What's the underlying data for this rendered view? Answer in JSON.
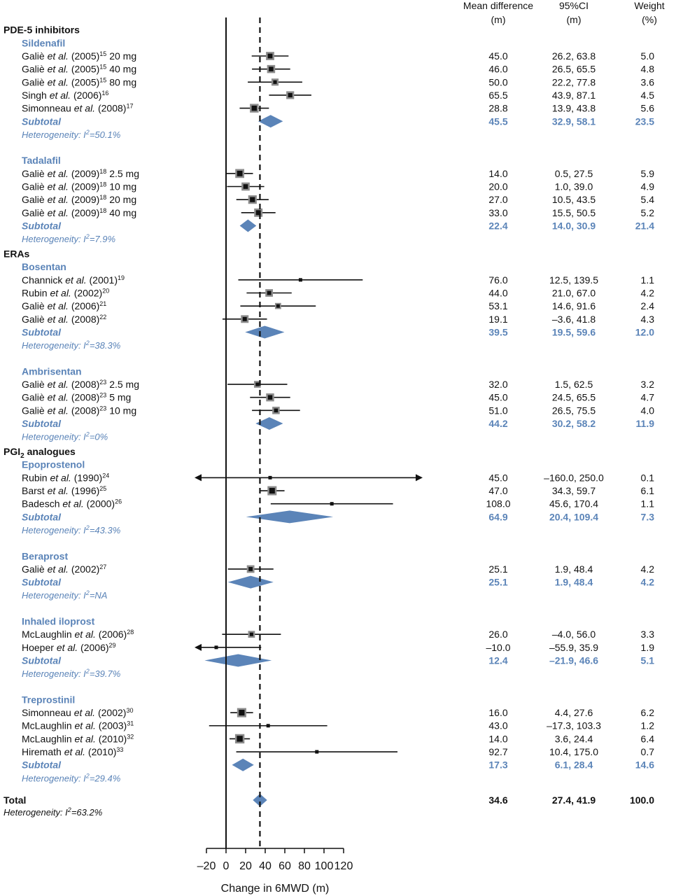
{
  "chart_data": {
    "type": "forest",
    "xlabel": "Change in 6MWD (m)",
    "xlim": [
      -20,
      120
    ],
    "xticks": [
      -20,
      0,
      20,
      40,
      60,
      80,
      100,
      120
    ],
    "reference_line": 34.6,
    "columns": {
      "mean": [
        "Mean difference",
        "(m)"
      ],
      "ci": [
        "95%CI",
        "(m)"
      ],
      "weight": [
        "Weight",
        "(%)"
      ]
    },
    "groups": [
      {
        "name": "PDE-5 inhibitors",
        "name_sub": "",
        "subgroups": [
          {
            "name": "Sildenafil",
            "studies": [
              {
                "pre": "Galiè ",
                "it": "et al.",
                "post": " (2005)",
                "sup": "15",
                "suf": " 20 mg",
                "md": 45.0,
                "lo": 26.2,
                "hi": 63.8,
                "md_t": "45.0",
                "ci_t": "26.2, 63.8",
                "w_t": "5.0",
                "w": 5.0
              },
              {
                "pre": "Galiè ",
                "it": "et al.",
                "post": " (2005)",
                "sup": "15",
                "suf": " 40 mg",
                "md": 46.0,
                "lo": 26.5,
                "hi": 65.5,
                "md_t": "46.0",
                "ci_t": "26.5, 65.5",
                "w_t": "4.8",
                "w": 4.8
              },
              {
                "pre": "Galiè ",
                "it": "et al.",
                "post": " (2005)",
                "sup": "15",
                "suf": " 80 mg",
                "md": 50.0,
                "lo": 22.2,
                "hi": 77.8,
                "md_t": "50.0",
                "ci_t": "22.2, 77.8",
                "w_t": "3.6",
                "w": 3.6
              },
              {
                "pre": "Singh ",
                "it": "et al.",
                "post": " (2006)",
                "sup": "16",
                "suf": "",
                "md": 65.5,
                "lo": 43.9,
                "hi": 87.1,
                "md_t": "65.5",
                "ci_t": "43.9, 87.1",
                "w_t": "4.5",
                "w": 4.5
              },
              {
                "pre": "Simonneau ",
                "it": "et al.",
                "post": " (2008)",
                "sup": "17",
                "suf": "",
                "md": 28.8,
                "lo": 13.9,
                "hi": 43.8,
                "md_t": "28.8",
                "ci_t": "13.9, 43.8",
                "w_t": "5.6",
                "w": 5.6
              }
            ],
            "subtotal": {
              "label": "Subtotal",
              "md": 45.5,
              "lo": 32.9,
              "hi": 58.1,
              "md_t": "45.5",
              "ci_t": "32.9, 58.1",
              "w_t": "23.5"
            },
            "het": {
              "pre": "Heterogeneity: ",
              "i": "I",
              "sup": "2",
              "post": "=50.1%"
            }
          },
          {
            "name": "Tadalafil",
            "studies": [
              {
                "pre": "Galiè ",
                "it": "et al.",
                "post": " (2009)",
                "sup": "18",
                "suf": " 2.5 mg",
                "md": 14.0,
                "lo": 0.5,
                "hi": 27.5,
                "md_t": "14.0",
                "ci_t": "0.5, 27.5",
                "w_t": "5.9",
                "w": 5.9
              },
              {
                "pre": "Galiè ",
                "it": "et al.",
                "post": " (2009)",
                "sup": "18",
                "suf": " 10 mg",
                "md": 20.0,
                "lo": 1.0,
                "hi": 39.0,
                "md_t": "20.0",
                "ci_t": "1.0, 39.0",
                "w_t": "4.9",
                "w": 4.9
              },
              {
                "pre": "Galiè ",
                "it": "et al.",
                "post": " (2009)",
                "sup": "18",
                "suf": " 20 mg",
                "md": 27.0,
                "lo": 10.5,
                "hi": 43.5,
                "md_t": "27.0",
                "ci_t": "10.5, 43.5",
                "w_t": "5.4",
                "w": 5.4
              },
              {
                "pre": "Galiè ",
                "it": "et al.",
                "post": " (2009)",
                "sup": "18",
                "suf": " 40 mg",
                "md": 33.0,
                "lo": 15.5,
                "hi": 50.5,
                "md_t": "33.0",
                "ci_t": "15.5, 50.5",
                "w_t": "5.2",
                "w": 5.2
              }
            ],
            "subtotal": {
              "label": "Subtotal",
              "md": 22.4,
              "lo": 14.0,
              "hi": 30.9,
              "md_t": "22.4",
              "ci_t": "14.0, 30.9",
              "w_t": "21.4"
            },
            "het": {
              "pre": "Heterogeneity: ",
              "i": "I",
              "sup": "2",
              "post": "=7.9%"
            }
          }
        ]
      },
      {
        "name": "ERAs",
        "name_sub": "",
        "subgroups": [
          {
            "name": "Bosentan",
            "studies": [
              {
                "pre": "Channick ",
                "it": "et al.",
                "post": " (2001)",
                "sup": "19",
                "suf": "",
                "md": 76.0,
                "lo": 12.5,
                "hi": 139.5,
                "md_t": "76.0",
                "ci_t": "12.5, 139.5",
                "w_t": "1.1",
                "w": 1.1
              },
              {
                "pre": "Rubin ",
                "it": "et al.",
                "post": " (2002)",
                "sup": "20",
                "suf": "",
                "md": 44.0,
                "lo": 21.0,
                "hi": 67.0,
                "md_t": "44.0",
                "ci_t": "21.0, 67.0",
                "w_t": "4.2",
                "w": 4.2
              },
              {
                "pre": "Galiè ",
                "it": "et al.",
                "post": " (2006)",
                "sup": "21",
                "suf": "",
                "md": 53.1,
                "lo": 14.6,
                "hi": 91.6,
                "md_t": "53.1",
                "ci_t": "14.6, 91.6",
                "w_t": "2.4",
                "w": 2.4
              },
              {
                "pre": "Galiè ",
                "it": "et al.",
                "post": " (2008)",
                "sup": "22",
                "suf": "",
                "md": 19.1,
                "lo": -3.6,
                "hi": 41.8,
                "md_t": "19.1",
                "ci_t": "–3.6, 41.8",
                "w_t": "4.3",
                "w": 4.3
              }
            ],
            "subtotal": {
              "label": "Subtotal",
              "md": 39.5,
              "lo": 19.5,
              "hi": 59.6,
              "md_t": "39.5",
              "ci_t": "19.5, 59.6",
              "w_t": "12.0"
            },
            "het": {
              "pre": "Heterogeneity: ",
              "i": "I",
              "sup": "2",
              "post": "=38.3%"
            }
          },
          {
            "name": "Ambrisentan",
            "studies": [
              {
                "pre": "Galiè ",
                "it": "et al.",
                "post": " (2008)",
                "sup": "23",
                "suf": " 2.5 mg",
                "md": 32.0,
                "lo": 1.5,
                "hi": 62.5,
                "md_t": "32.0",
                "ci_t": "1.5, 62.5",
                "w_t": "3.2",
                "w": 3.2
              },
              {
                "pre": "Galiè ",
                "it": "et al.",
                "post": " (2008)",
                "sup": "23",
                "suf": " 5 mg",
                "md": 45.0,
                "lo": 24.5,
                "hi": 65.5,
                "md_t": "45.0",
                "ci_t": "24.5, 65.5",
                "w_t": "4.7",
                "w": 4.7
              },
              {
                "pre": "Galiè ",
                "it": "et al.",
                "post": " (2008)",
                "sup": "23",
                "suf": " 10 mg",
                "md": 51.0,
                "lo": 26.5,
                "hi": 75.5,
                "md_t": "51.0",
                "ci_t": "26.5, 75.5",
                "w_t": "4.0",
                "w": 4.0
              }
            ],
            "subtotal": {
              "label": "Subtotal",
              "md": 44.2,
              "lo": 30.2,
              "hi": 58.2,
              "md_t": "44.2",
              "ci_t": "30.2, 58.2",
              "w_t": "11.9"
            },
            "het": {
              "pre": "Heterogeneity: ",
              "i": "I",
              "sup": "2",
              "post": "=0%"
            }
          }
        ]
      },
      {
        "name": "PGI",
        "name_sub": "2",
        "name_post": " analogues",
        "subgroups": [
          {
            "name": "Epoprostenol",
            "studies": [
              {
                "pre": "Rubin ",
                "it": "et al.",
                "post": " (1990)",
                "sup": "24",
                "suf": "",
                "md": 45.0,
                "lo": -160.0,
                "hi": 250.0,
                "md_t": "45.0",
                "ci_t": "–160.0, 250.0",
                "w_t": "0.1",
                "w": 0.1
              },
              {
                "pre": "Barst ",
                "it": "et al.",
                "post": " (1996)",
                "sup": "25",
                "suf": "",
                "md": 47.0,
                "lo": 34.3,
                "hi": 59.7,
                "md_t": "47.0",
                "ci_t": "34.3, 59.7",
                "w_t": "6.1",
                "w": 6.1
              },
              {
                "pre": "Badesch ",
                "it": "et al.",
                "post": " (2000)",
                "sup": "26",
                "suf": "",
                "md": 108.0,
                "lo": 45.6,
                "hi": 170.4,
                "md_t": "108.0",
                "ci_t": "45.6, 170.4",
                "w_t": "1.1",
                "w": 1.1
              }
            ],
            "subtotal": {
              "label": "Subtotal",
              "md": 64.9,
              "lo": 20.4,
              "hi": 109.4,
              "md_t": "64.9",
              "ci_t": "20.4, 109.4",
              "w_t": "7.3"
            },
            "het": {
              "pre": "Heterogeneity: ",
              "i": "I",
              "sup": "2",
              "post": "=43.3%"
            }
          },
          {
            "name": "Beraprost",
            "studies": [
              {
                "pre": "Galiè ",
                "it": "et al.",
                "post": " (2002)",
                "sup": "27",
                "suf": "",
                "md": 25.1,
                "lo": 1.9,
                "hi": 48.4,
                "md_t": "25.1",
                "ci_t": "1.9, 48.4",
                "w_t": "4.2",
                "w": 4.2
              }
            ],
            "subtotal": {
              "label": "Subtotal",
              "md": 25.1,
              "lo": 1.9,
              "hi": 48.4,
              "md_t": "25.1",
              "ci_t": "1.9, 48.4",
              "w_t": "4.2"
            },
            "het": {
              "pre": "Heterogeneity: ",
              "i": "I",
              "sup": "2",
              "post": "=NA"
            }
          },
          {
            "name": "Inhaled iloprost",
            "studies": [
              {
                "pre": "McLaughlin ",
                "it": "et al.",
                "post": " (2006)",
                "sup": "28",
                "suf": "",
                "md": 26.0,
                "lo": -4.0,
                "hi": 56.0,
                "md_t": "26.0",
                "ci_t": "–4.0, 56.0",
                "w_t": "3.3",
                "w": 3.3
              },
              {
                "pre": "Hoeper ",
                "it": "et al.",
                "post": " (2006)",
                "sup": "29",
                "suf": "",
                "md": -10.0,
                "lo": -55.9,
                "hi": 35.9,
                "md_t": "–10.0",
                "ci_t": "–55.9, 35.9",
                "w_t": "1.9",
                "w": 1.9
              }
            ],
            "subtotal": {
              "label": "Subtotal",
              "md": 12.4,
              "lo": -21.9,
              "hi": 46.6,
              "md_t": "12.4",
              "ci_t": "–21.9, 46.6",
              "w_t": "5.1"
            },
            "het": {
              "pre": "Heterogeneity: ",
              "i": "I",
              "sup": "2",
              "post": "=39.7%"
            }
          },
          {
            "name": "Treprostinil",
            "studies": [
              {
                "pre": "Simonneau ",
                "it": "et al.",
                "post": " (2002)",
                "sup": "30",
                "suf": "",
                "md": 16.0,
                "lo": 4.4,
                "hi": 27.6,
                "md_t": "16.0",
                "ci_t": "4.4, 27.6",
                "w_t": "6.2",
                "w": 6.2
              },
              {
                "pre": "McLaughlin ",
                "it": "et al.",
                "post": " (2003)",
                "sup": "31",
                "suf": "",
                "md": 43.0,
                "lo": -17.3,
                "hi": 103.3,
                "md_t": "43.0",
                "ci_t": "–17.3, 103.3",
                "w_t": "1.2",
                "w": 1.2
              },
              {
                "pre": "McLaughlin ",
                "it": "et al.",
                "post": " (2010)",
                "sup": "32",
                "suf": "",
                "md": 14.0,
                "lo": 3.6,
                "hi": 24.4,
                "md_t": "14.0",
                "ci_t": "3.6, 24.4",
                "w_t": "6.4",
                "w": 6.4
              },
              {
                "pre": "Hiremath ",
                "it": "et al.",
                "post": " (2010)",
                "sup": "33",
                "suf": "",
                "md": 92.7,
                "lo": 10.4,
                "hi": 175.0,
                "md_t": "92.7",
                "ci_t": "10.4, 175.0",
                "w_t": "0.7",
                "w": 0.7
              }
            ],
            "subtotal": {
              "label": "Subtotal",
              "md": 17.3,
              "lo": 6.1,
              "hi": 28.4,
              "md_t": "17.3",
              "ci_t": "6.1, 28.4",
              "w_t": "14.6"
            },
            "het": {
              "pre": "Heterogeneity: ",
              "i": "I",
              "sup": "2",
              "post": "=29.4%"
            }
          }
        ]
      }
    ],
    "total": {
      "label": "Total",
      "md": 34.6,
      "lo": 27.4,
      "hi": 41.9,
      "md_t": "34.6",
      "ci_t": "27.4, 41.9",
      "w_t": "100.0",
      "het": {
        "pre": "Heterogeneity: ",
        "i": "I",
        "sup": "2",
        "post": "=63.2%"
      }
    },
    "colors": {
      "diamond": "#5b84b8",
      "accent_text": "#5b84b8",
      "square_fill": "#111111",
      "square_border": "#8c8c8c",
      "line": "#111111"
    }
  }
}
